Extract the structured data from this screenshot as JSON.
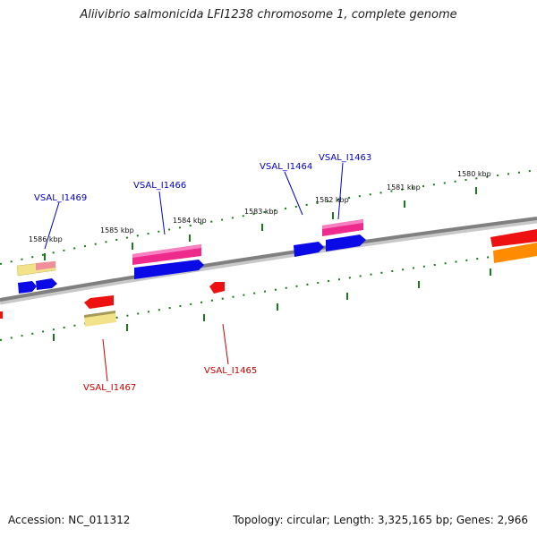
{
  "title": "Aliivibrio salmonicida LFI1238 chromosome 1, complete genome",
  "footer": {
    "accession": "Accession: NC_011312",
    "summary": "Topology: circular; Length: 3,325,165 bp; Genes: 2,966"
  },
  "ticks": [
    {
      "label": "1586 kbp"
    },
    {
      "label": "1585 kbp"
    },
    {
      "label": "1584 kbp"
    },
    {
      "label": "1583 kbp"
    },
    {
      "label": "1582 kbp"
    },
    {
      "label": "1581 kbp"
    },
    {
      "label": "1580 kbp"
    }
  ],
  "gene_labels": {
    "VSAL_I1469": "VSAL_I1469",
    "VSAL_I1466": "VSAL_I1466",
    "VSAL_I1464": "VSAL_I1464",
    "VSAL_I1463": "VSAL_I1463",
    "VSAL_I1467": "VSAL_I1467",
    "VSAL_I1465": "VSAL_I1465"
  },
  "colors": {
    "forward_label": "#0000cc",
    "reverse_label": "#cc0000",
    "cds_blue": "#0a0ae6",
    "cds_pink": "#ee2a8c",
    "cds_red": "#ee1111",
    "cds_yellow": "#f2e28a",
    "cds_orange": "#ff8c00",
    "tick_green": "#1a7a1a",
    "backbone": "#8a8a8a"
  }
}
